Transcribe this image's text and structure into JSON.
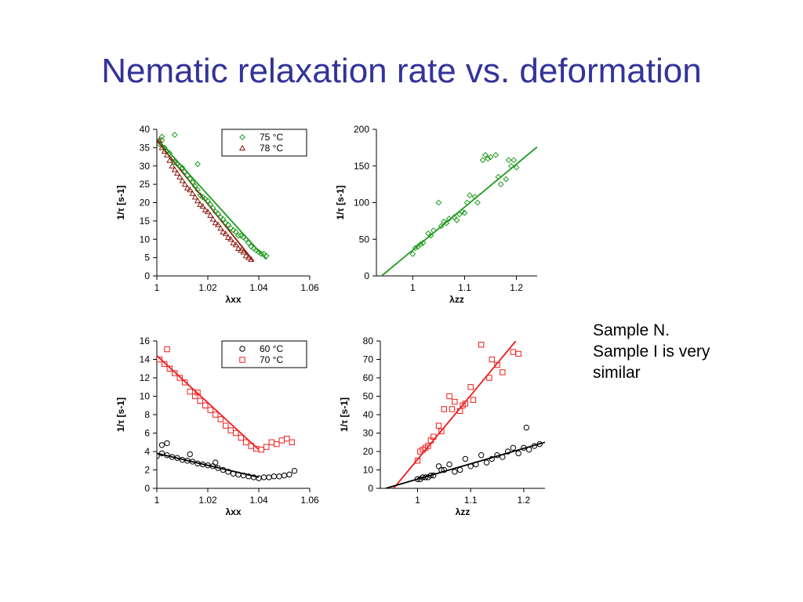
{
  "slide": {
    "title": "Nematic relaxation rate vs. deformation",
    "note_lines": [
      "Sample N.",
      "Sample I is very",
      "similar"
    ]
  },
  "colors": {
    "title": "#33339a",
    "green": "#1f9a1f",
    "darkred": "#8b1a10",
    "red": "#ee1c1c",
    "black": "#000000"
  },
  "chart_data": [
    {
      "type": "scatter",
      "xlabel": "λxx",
      "ylabel": "1/τ [s-1]",
      "xlim": [
        1.0,
        1.06
      ],
      "ylim": [
        0,
        40
      ],
      "xticks": [
        1,
        1.02,
        1.04,
        1.06
      ],
      "xtick_labels": [
        "1",
        "1.02",
        "1.04",
        "1.06"
      ],
      "yticks": [
        0,
        5,
        10,
        15,
        20,
        25,
        30,
        35,
        40
      ],
      "ytick_labels": [
        "0",
        "5",
        "10",
        "15",
        "20",
        "25",
        "30",
        "35",
        "40"
      ],
      "legend": "top-right",
      "series": [
        {
          "name": "75 °C",
          "marker": "diamond",
          "color": "#1f9a1f",
          "x": [
            1.001,
            1.002,
            1.003,
            1.004,
            1.005,
            1.006,
            1.007,
            1.008,
            1.009,
            1.01,
            1.011,
            1.012,
            1.013,
            1.014,
            1.015,
            1.016,
            1.017,
            1.018,
            1.019,
            1.02,
            1.021,
            1.022,
            1.023,
            1.024,
            1.025,
            1.026,
            1.027,
            1.028,
            1.029,
            1.03,
            1.031,
            1.032,
            1.033,
            1.034,
            1.035,
            1.036,
            1.037,
            1.038,
            1.039,
            1.04,
            1.041,
            1.042,
            1.043,
            1.007,
            1.016,
            1.002
          ],
          "y": [
            36,
            37,
            35,
            34,
            33.5,
            32,
            31,
            30.5,
            30,
            29.5,
            28.5,
            27.5,
            26.5,
            25.5,
            24.5,
            23.5,
            22,
            21.5,
            21,
            20.5,
            19.5,
            18.5,
            17.5,
            17,
            16,
            15.5,
            14.5,
            14,
            13,
            12.5,
            12,
            11,
            11,
            10.5,
            10,
            9,
            8,
            7.5,
            7,
            6.5,
            6,
            6,
            5.5,
            38.5,
            30.5,
            38
          ]
        },
        {
          "name": "78 °C",
          "marker": "triangle",
          "color": "#8b1a10",
          "x": [
            1.001,
            1.002,
            1.003,
            1.004,
            1.005,
            1.006,
            1.007,
            1.008,
            1.009,
            1.01,
            1.011,
            1.012,
            1.013,
            1.014,
            1.015,
            1.016,
            1.017,
            1.018,
            1.019,
            1.02,
            1.021,
            1.022,
            1.023,
            1.024,
            1.025,
            1.026,
            1.027,
            1.028,
            1.029,
            1.03,
            1.031,
            1.032,
            1.033,
            1.034,
            1.035,
            1.036,
            1.037
          ],
          "y": [
            37,
            35,
            34,
            33,
            31.5,
            30,
            29,
            28,
            27,
            26,
            25,
            24,
            23.5,
            22.5,
            21.5,
            20.5,
            19.5,
            19,
            18,
            17.5,
            16.5,
            15.5,
            14.5,
            14,
            13,
            12,
            11.5,
            10.5,
            10,
            9,
            8.5,
            7.5,
            7,
            6.5,
            5.5,
            5,
            4.5
          ]
        }
      ],
      "fit_lines": [
        {
          "color": "#1f9a1f",
          "x": [
            1.0,
            1.043
          ],
          "y": [
            37.5,
            4.5
          ]
        },
        {
          "color": "#8b1a10",
          "x": [
            1.0,
            1.038
          ],
          "y": [
            37.0,
            4.0
          ]
        }
      ]
    },
    {
      "type": "scatter",
      "xlabel": "λzz",
      "ylabel": "1/τ [s-1]",
      "xlim": [
        0.93,
        1.24
      ],
      "ylim": [
        0,
        200
      ],
      "xticks": [
        1,
        1.1,
        1.2
      ],
      "xtick_labels": [
        "1",
        "1.1",
        "1.2"
      ],
      "yticks": [
        0,
        50,
        100,
        150,
        200
      ],
      "ytick_labels": [
        "0",
        "50",
        "100",
        "150",
        "200"
      ],
      "series": [
        {
          "name": "",
          "marker": "diamond",
          "color": "#1f9a1f",
          "x": [
            1.0,
            1.005,
            1.01,
            1.015,
            1.02,
            1.03,
            1.035,
            1.04,
            1.055,
            1.06,
            1.065,
            1.07,
            1.08,
            1.085,
            1.09,
            1.095,
            1.1,
            1.105,
            1.11,
            1.12,
            1.125,
            1.135,
            1.14,
            1.145,
            1.15,
            1.16,
            1.165,
            1.17,
            1.18,
            1.185,
            1.19,
            1.195,
            1.2,
            1.05
          ],
          "y": [
            30,
            38,
            40,
            43,
            45,
            58,
            55,
            62,
            68,
            74,
            72,
            78,
            80,
            76,
            84,
            88,
            86,
            100,
            110,
            108,
            100,
            158,
            165,
            160,
            162,
            165,
            135,
            125,
            132,
            158,
            150,
            158,
            148,
            100
          ]
        }
      ],
      "fit_lines": [
        {
          "color": "#1f9a1f",
          "x": [
            0.94,
            1.24
          ],
          "y": [
            0,
            176
          ]
        }
      ]
    },
    {
      "type": "scatter",
      "xlabel": "λxx",
      "ylabel": "1/τ [s-1]",
      "xlim": [
        1.0,
        1.06
      ],
      "ylim": [
        0,
        16
      ],
      "xticks": [
        1,
        1.02,
        1.04,
        1.06
      ],
      "xtick_labels": [
        "1",
        "1.02",
        "1.04",
        "1.06"
      ],
      "yticks": [
        0,
        2,
        4,
        6,
        8,
        10,
        12,
        14,
        16
      ],
      "ytick_labels": [
        "0",
        "2",
        "4",
        "6",
        "8",
        "10",
        "12",
        "14",
        "16"
      ],
      "legend": "top-right",
      "series": [
        {
          "name": "60 °C",
          "marker": "circle",
          "color": "#000000",
          "x": [
            1.0,
            1.002,
            1.004,
            1.006,
            1.008,
            1.01,
            1.012,
            1.014,
            1.016,
            1.018,
            1.02,
            1.022,
            1.024,
            1.026,
            1.028,
            1.03,
            1.032,
            1.034,
            1.036,
            1.038,
            1.04,
            1.042,
            1.044,
            1.046,
            1.048,
            1.05,
            1.052,
            1.054,
            1.002,
            1.004,
            1.013,
            1.023
          ],
          "y": [
            3.5,
            3.8,
            3.6,
            3.4,
            3.3,
            3.1,
            3.0,
            2.9,
            2.7,
            2.6,
            2.5,
            2.4,
            2.2,
            2.0,
            1.8,
            1.6,
            1.5,
            1.4,
            1.3,
            1.2,
            1.1,
            1.2,
            1.2,
            1.3,
            1.3,
            1.4,
            1.5,
            1.9,
            4.7,
            4.9,
            3.7,
            2.8
          ]
        },
        {
          "name": "70 °C",
          "marker": "square",
          "color": "#ee1c1c",
          "x": [
            1.001,
            1.003,
            1.005,
            1.007,
            1.009,
            1.011,
            1.013,
            1.015,
            1.017,
            1.019,
            1.021,
            1.023,
            1.025,
            1.027,
            1.029,
            1.031,
            1.033,
            1.035,
            1.037,
            1.039,
            1.041,
            1.043,
            1.045,
            1.047,
            1.049,
            1.051,
            1.053,
            1.004,
            1.016
          ],
          "y": [
            14.0,
            13.5,
            13.0,
            12.5,
            12.0,
            11.5,
            10.5,
            10.0,
            9.5,
            9.0,
            8.5,
            8.0,
            7.5,
            6.8,
            6.3,
            6.0,
            5.5,
            5.0,
            4.6,
            4.3,
            4.2,
            4.5,
            5.0,
            4.8,
            5.2,
            5.4,
            5.0,
            15.1,
            10.4
          ]
        }
      ],
      "fit_lines": [
        {
          "color": "#ee1c1c",
          "x": [
            1.0,
            1.04
          ],
          "y": [
            14.4,
            4.2
          ]
        },
        {
          "color": "#000000",
          "x": [
            1.0,
            1.04
          ],
          "y": [
            3.8,
            1.2
          ]
        }
      ]
    },
    {
      "type": "scatter",
      "xlabel": "λzz",
      "ylabel": "1/τ [s-1]",
      "xlim": [
        0.93,
        1.24
      ],
      "ylim": [
        0,
        80
      ],
      "xticks": [
        1,
        1.1,
        1.2
      ],
      "xtick_labels": [
        "1",
        "1.1",
        "1.2"
      ],
      "yticks": [
        0,
        10,
        20,
        30,
        40,
        50,
        60,
        70,
        80
      ],
      "ytick_labels": [
        "0",
        "10",
        "20",
        "30",
        "40",
        "50",
        "60",
        "70",
        "80"
      ],
      "series": [
        {
          "name": "",
          "marker": "square",
          "color": "#ee1c1c",
          "x": [
            1.0,
            1.005,
            1.01,
            1.015,
            1.02,
            1.025,
            1.03,
            1.04,
            1.045,
            1.05,
            1.06,
            1.065,
            1.07,
            1.08,
            1.085,
            1.09,
            1.1,
            1.105,
            1.12,
            1.135,
            1.14,
            1.15,
            1.16,
            1.18,
            1.19
          ],
          "y": [
            15,
            20,
            21,
            22,
            23,
            26,
            28,
            34,
            31,
            43,
            50,
            43,
            47,
            42,
            45,
            46,
            55,
            48,
            78,
            60,
            70,
            67,
            63,
            74,
            73
          ]
        },
        {
          "name": "",
          "marker": "circle",
          "color": "#000000",
          "x": [
            1.0,
            1.005,
            1.01,
            1.015,
            1.02,
            1.025,
            1.03,
            1.04,
            1.045,
            1.05,
            1.06,
            1.07,
            1.08,
            1.09,
            1.1,
            1.11,
            1.12,
            1.13,
            1.14,
            1.15,
            1.16,
            1.17,
            1.18,
            1.19,
            1.2,
            1.21,
            1.22,
            1.23,
            1.205
          ],
          "y": [
            5,
            5,
            6,
            6,
            6,
            7,
            7,
            12,
            10,
            10,
            13,
            9,
            10,
            16,
            12,
            13,
            18,
            14,
            16,
            18,
            17,
            20,
            22,
            19,
            22,
            21,
            23,
            24,
            33
          ]
        }
      ],
      "fit_lines": [
        {
          "color": "#ee1c1c",
          "x": [
            0.955,
            1.185
          ],
          "y": [
            0,
            80
          ]
        },
        {
          "color": "#000000",
          "x": [
            0.94,
            1.24
          ],
          "y": [
            0,
            25
          ]
        }
      ]
    }
  ]
}
